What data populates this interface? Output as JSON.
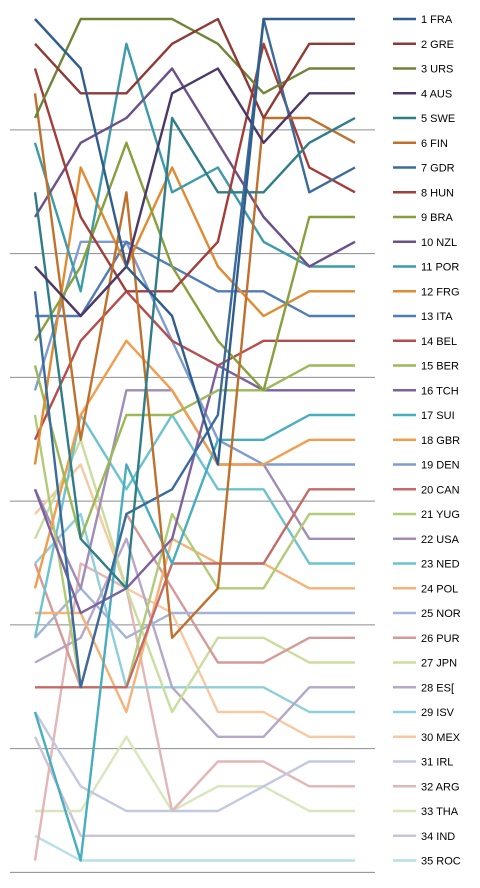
{
  "chart_data": {
    "type": "line",
    "title": "",
    "xlabel": "",
    "ylabel": "",
    "x": [
      1,
      2,
      3,
      4,
      5,
      6,
      7,
      8
    ],
    "ylim": [
      1,
      35
    ],
    "y_inverted": true,
    "gridlines_every": 5,
    "legend_placement": "right",
    "series": [
      {
        "name": "1 FRA",
        "color": "#2f5d8c",
        "values": [
          1,
          3,
          11,
          13,
          19,
          1,
          1,
          1
        ]
      },
      {
        "name": "2 GRE",
        "color": "#8e3a35",
        "values": [
          2,
          4,
          4,
          2,
          1,
          5,
          2,
          2
        ]
      },
      {
        "name": "3 URS",
        "color": "#6f8436",
        "values": [
          5,
          1,
          1,
          1,
          2,
          4,
          3,
          3
        ]
      },
      {
        "name": "4 AUS",
        "color": "#4c3867",
        "values": [
          11,
          13,
          11,
          4,
          3,
          6,
          4,
          4
        ]
      },
      {
        "name": "5 SWE",
        "color": "#2f7d88",
        "values": [
          8,
          22,
          24,
          5,
          8,
          8,
          6,
          5
        ]
      },
      {
        "name": "6 FIN",
        "color": "#c0702d",
        "values": [
          4,
          18,
          8,
          26,
          24,
          5,
          5,
          6
        ]
      },
      {
        "name": "7 GDR",
        "color": "#3b6b9c",
        "values": [
          12,
          28,
          21,
          20,
          17,
          1,
          8,
          7
        ]
      },
      {
        "name": "8 HUN",
        "color": "#a33d3a",
        "values": [
          3,
          9,
          12,
          12,
          10,
          2,
          7,
          8
        ]
      },
      {
        "name": "9 BRA",
        "color": "#87a03d",
        "values": [
          14,
          11,
          6,
          11,
          14,
          16,
          9,
          9
        ]
      },
      {
        "name": "10 NZL",
        "color": "#6c5088",
        "values": [
          9,
          6,
          5,
          3,
          6,
          9,
          11,
          10
        ]
      },
      {
        "name": "11 POR",
        "color": "#3d9aa8",
        "values": [
          6,
          12,
          2,
          8,
          7,
          10,
          11,
          11
        ]
      },
      {
        "name": "12 FRG",
        "color": "#e28a31",
        "values": [
          19,
          7,
          11,
          7,
          11,
          13,
          12,
          12
        ]
      },
      {
        "name": "13 ITA",
        "color": "#4f7cb4",
        "values": [
          13,
          13,
          10,
          11,
          12,
          12,
          13,
          13
        ]
      },
      {
        "name": "14 BEL",
        "color": "#b64c4c",
        "values": [
          18,
          14,
          12,
          14,
          15,
          14,
          14,
          14
        ]
      },
      {
        "name": "15 BER",
        "color": "#9bb956",
        "values": [
          15,
          22,
          17,
          17,
          16,
          16,
          15,
          15
        ]
      },
      {
        "name": "16 TCH",
        "color": "#7b619f",
        "values": [
          20,
          25,
          24,
          22,
          15,
          16,
          16,
          16
        ]
      },
      {
        "name": "17 SUI",
        "color": "#47aec0",
        "values": [
          29,
          35,
          19,
          23,
          18,
          18,
          17,
          17
        ]
      },
      {
        "name": "18 GBR",
        "color": "#f39c4c",
        "values": [
          24,
          17,
          14,
          16,
          19,
          19,
          18,
          18
        ]
      },
      {
        "name": "19 DEN",
        "color": "#7f9bd0",
        "values": [
          16,
          10,
          10,
          14,
          18,
          19,
          19,
          19
        ]
      },
      {
        "name": "20 CAN",
        "color": "#c46b67",
        "values": [
          28,
          28,
          28,
          23,
          23,
          23,
          20,
          20
        ]
      },
      {
        "name": "21 YUG",
        "color": "#b0cc78",
        "values": [
          17,
          28,
          28,
          21,
          24,
          24,
          21,
          21
        ]
      },
      {
        "name": "22 USA",
        "color": "#9f8db6",
        "values": [
          20,
          24,
          16,
          16,
          19,
          19,
          22,
          22
        ]
      },
      {
        "name": "23 NED",
        "color": "#6cc3cf",
        "values": [
          26,
          17,
          20,
          17,
          20,
          20,
          23,
          23
        ]
      },
      {
        "name": "24 POL",
        "color": "#f6b177",
        "values": [
          25,
          25,
          29,
          22,
          23,
          23,
          24,
          24
        ]
      },
      {
        "name": "25 NOR",
        "color": "#a2b4d8",
        "values": [
          26,
          24,
          26,
          25,
          25,
          25,
          25,
          25
        ]
      },
      {
        "name": "26 PUR",
        "color": "#d39a98",
        "values": [
          23,
          28,
          21,
          24,
          27,
          27,
          26,
          26
        ]
      },
      {
        "name": "27 JPN",
        "color": "#c9dd9d",
        "values": [
          22,
          18,
          24,
          29,
          26,
          26,
          27,
          27
        ]
      },
      {
        "name": "28 ES[",
        "color": "#b4a7c8",
        "values": [
          27,
          26,
          22,
          28,
          30,
          30,
          28,
          28
        ]
      },
      {
        "name": "29 ISV",
        "color": "#8fcfdb",
        "values": [
          23,
          21,
          28,
          28,
          28,
          28,
          29,
          29
        ]
      },
      {
        "name": "30 MEX",
        "color": "#f8c8a2",
        "values": [
          21,
          19,
          24,
          25,
          29,
          29,
          30,
          30
        ]
      },
      {
        "name": "31 IRL",
        "color": "#c1c8e0",
        "values": [
          29,
          32,
          33,
          33,
          33,
          32,
          31,
          31
        ]
      },
      {
        "name": "32 ARG",
        "color": "#e2b6b5",
        "values": [
          35,
          23,
          24,
          33,
          31,
          31,
          32,
          32
        ]
      },
      {
        "name": "33 THA",
        "color": "#d8e6bb",
        "values": [
          33,
          33,
          30,
          33,
          32,
          32,
          33,
          33
        ]
      },
      {
        "name": "34 IND",
        "color": "#cbc4d8",
        "values": [
          30,
          34,
          34,
          34,
          34,
          34,
          34,
          34
        ]
      },
      {
        "name": "35 ROC",
        "color": "#b8dfe6",
        "values": [
          34,
          35,
          35,
          35,
          35,
          35,
          35,
          35
        ]
      }
    ]
  }
}
